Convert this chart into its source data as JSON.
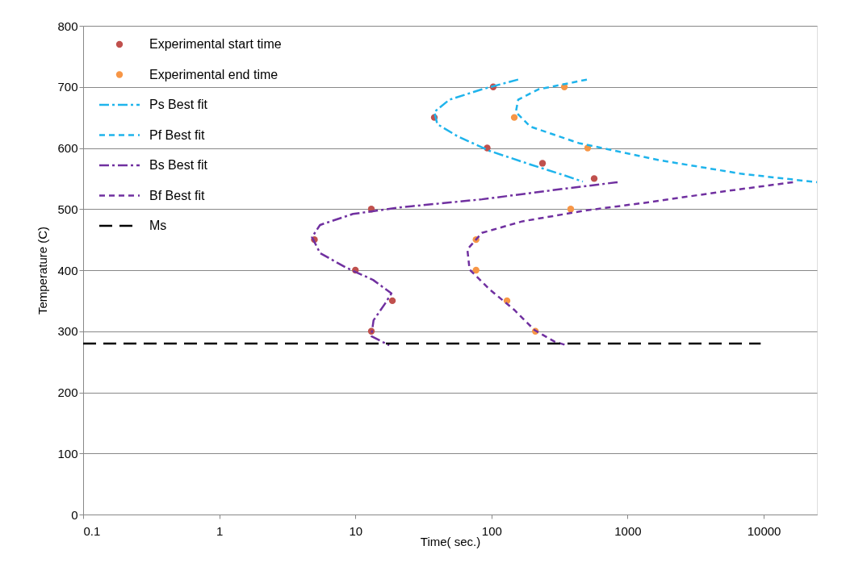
{
  "chart_data": {
    "type": "line",
    "xlabel": "Time( sec.)",
    "ylabel": "Temperature (C)",
    "log": "x",
    "xlim": [
      0.1,
      24600
    ],
    "xticks": [
      0.1,
      1,
      10,
      100,
      1000,
      10000
    ],
    "ylim": [
      0,
      800
    ],
    "yticks": [
      0,
      100,
      200,
      300,
      400,
      500,
      600,
      700,
      800
    ],
    "grid": "y",
    "legend": "top left",
    "series": [
      {
        "name": "Experimental start time",
        "type": "scatter",
        "marker": "circle",
        "color": "#c0504d",
        "x": [
          103,
          38,
          93,
          237,
          568,
          13.1,
          5.0,
          10,
          18.7,
          13.1
        ],
        "values": [
          700,
          650,
          600,
          575,
          550,
          500,
          450,
          400,
          350,
          300
        ]
      },
      {
        "name": "Experimental end time",
        "type": "scatter",
        "marker": "circle",
        "color": "#f79646",
        "x": [
          343,
          147,
          509,
          382,
          77,
          77,
          130,
          210
        ],
        "values": [
          700,
          650,
          600,
          500,
          450,
          400,
          350,
          300
        ]
      },
      {
        "name": "Ps Best fit",
        "line_style": "dashdot",
        "color": "#1fb4ec",
        "x": [
          157,
          85,
          49,
          38,
          40,
          56.5,
          97.5,
          193,
          334,
          469
        ],
        "values": [
          712,
          696,
          679,
          659,
          639,
          619,
          595,
          573,
          556,
          545
        ]
      },
      {
        "name": "Pf Best fit",
        "line_style": "dashed",
        "color": "#1fb4ec",
        "x": [
          502,
          221,
          157,
          151,
          193,
          438,
          1718,
          6730,
          24600
        ],
        "values": [
          712,
          696,
          679,
          659,
          635,
          608,
          580,
          558,
          544
        ]
      },
      {
        "name": "Bs Best fit",
        "line_style": "dashdot",
        "color": "#7030a0",
        "x": [
          844,
          334,
          85,
          21.7,
          9.6,
          5.5,
          4.8,
          5.5,
          8.4,
          13.5,
          18.4,
          16.5,
          13.6,
          13.1,
          17.7
        ],
        "values": [
          544,
          533,
          516,
          503,
          492,
          474,
          454,
          428,
          405,
          384,
          362,
          345,
          318,
          292,
          277
        ]
      },
      {
        "name": "Bf Best fit",
        "line_style": "dashed",
        "color": "#7030a0",
        "x": [
          16400,
          5120,
          1306,
          502,
          169,
          85,
          66.5,
          69,
          97.5,
          147,
          207,
          291,
          357
        ],
        "values": [
          544,
          529,
          510,
          498,
          480,
          461,
          434,
          401,
          368,
          335,
          302,
          283,
          277
        ]
      },
      {
        "name": "Ms",
        "line_style": "longdash",
        "color": "#000000",
        "x": [
          0.1,
          9500
        ],
        "values": [
          280,
          280
        ]
      }
    ]
  }
}
